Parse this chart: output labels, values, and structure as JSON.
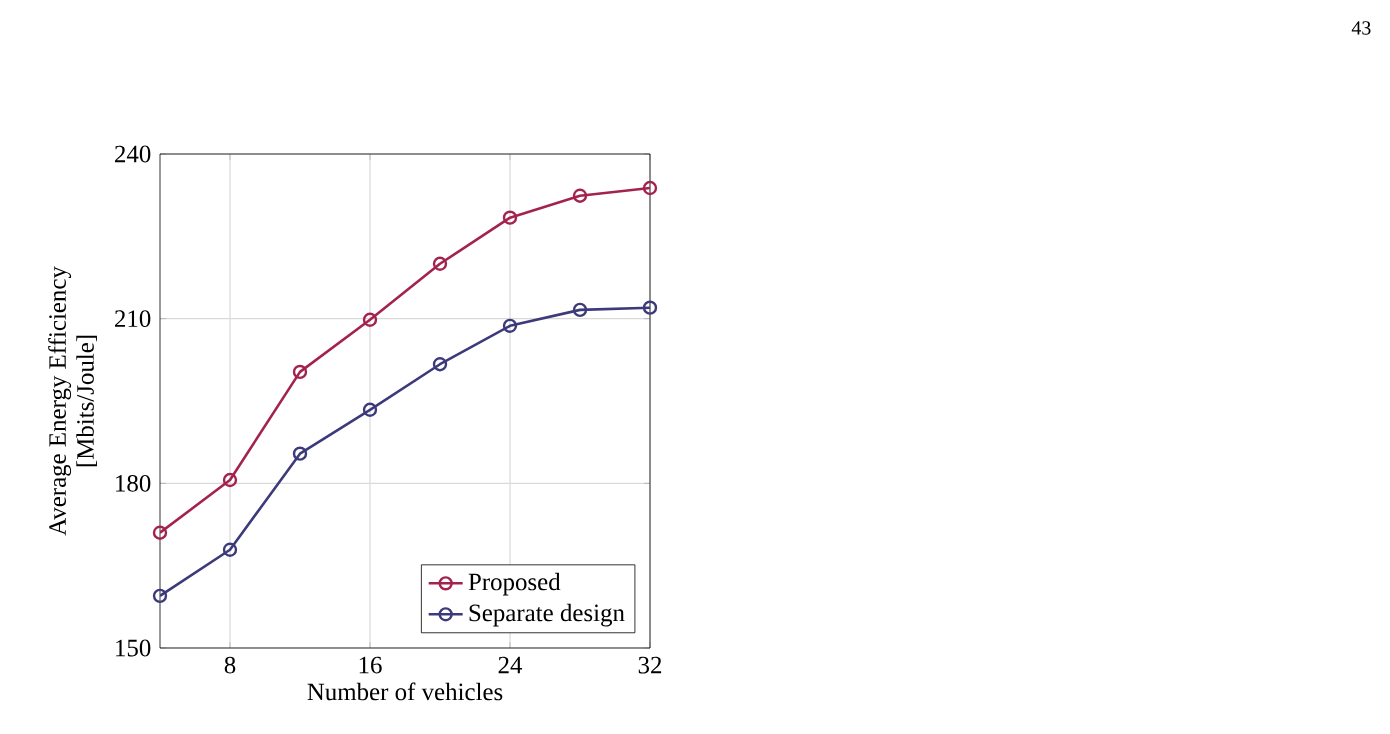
{
  "chart_data": {
    "type": "line",
    "xlabel": "Number of vehicles",
    "ylabel": "Average Energy Efficiency\n[Mbits/Joule]",
    "annotations": [
      "43"
    ],
    "x": [
      4,
      8,
      12,
      16,
      20,
      24,
      28,
      32
    ],
    "series": [
      {
        "name": "Proposed",
        "color": "#a3234f",
        "values": [
          171,
          180.6,
          200.3,
          209.8,
          220,
          228.4,
          232.4,
          233.8
        ]
      },
      {
        "name": "Separate design",
        "color": "#3d3a7c",
        "values": [
          159.5,
          167.9,
          185.4,
          193.4,
          201.7,
          208.7,
          211.6,
          212
        ]
      }
    ],
    "xlim": [
      4,
      32
    ],
    "xticks": [
      8,
      16,
      24,
      32
    ],
    "ylim": [
      150,
      240
    ],
    "yticks": [
      150,
      180,
      210,
      240
    ],
    "grid": true,
    "legend": "bottom right",
    "marker": "circle",
    "line_style": "solid"
  }
}
